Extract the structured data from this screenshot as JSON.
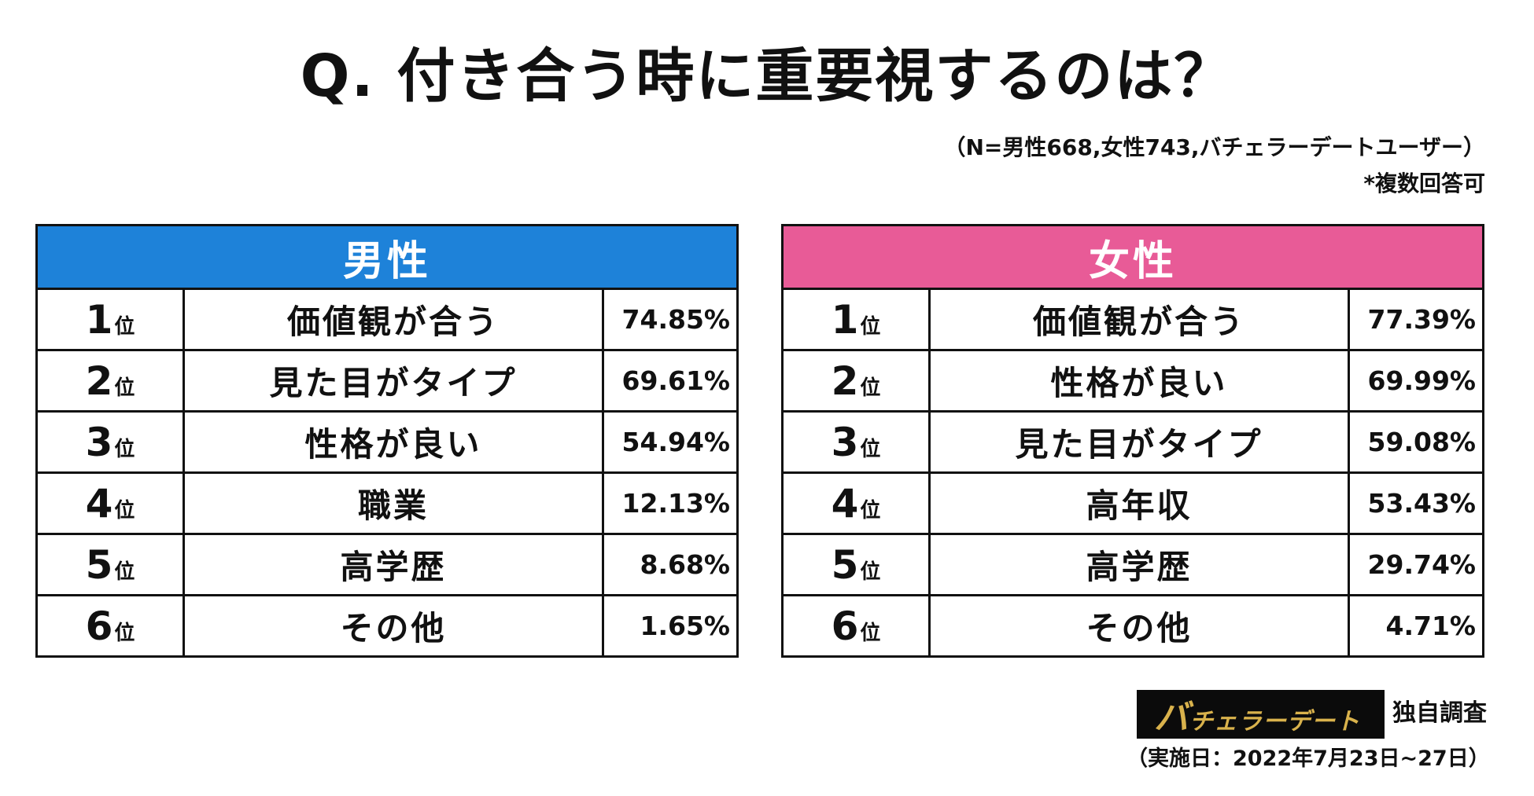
{
  "title": "Q. 付き合う時に重要視するのは？",
  "note": "（N=男性668,女性743,バチェラーデートユーザー）",
  "note2": "*複数回答可",
  "chart_data": [
    {
      "type": "table",
      "title": "男性",
      "header_color": "#1e82d9",
      "rank_suffix": "位",
      "ranks": [
        "1",
        "2",
        "3",
        "4",
        "5",
        "6"
      ],
      "categories": [
        "価値観が合う",
        "見た目がタイプ",
        "性格が良い",
        "職業",
        "高学歴",
        "その他"
      ],
      "values": [
        74.85,
        69.61,
        54.94,
        12.13,
        8.68,
        1.65
      ],
      "labels": [
        "74.85%",
        "69.61%",
        "54.94%",
        "12.13%",
        "8.68%",
        "1.65%"
      ]
    },
    {
      "type": "table",
      "title": "女性",
      "header_color": "#e85b97",
      "rank_suffix": "位",
      "ranks": [
        "1",
        "2",
        "3",
        "4",
        "5",
        "6"
      ],
      "categories": [
        "価値観が合う",
        "性格が良い",
        "見た目がタイプ",
        "高年収",
        "高学歴",
        "その他"
      ],
      "values": [
        77.39,
        69.99,
        59.08,
        53.43,
        29.74,
        4.71
      ],
      "labels": [
        "77.39%",
        "69.99%",
        "59.08%",
        "53.43%",
        "29.74%",
        "4.71%"
      ]
    }
  ],
  "footer": {
    "logo_big": "バ",
    "logo_rest": "チェラーデート",
    "survey": "独自調査",
    "dates": "（実施日：2022年7月23日~27日）"
  }
}
